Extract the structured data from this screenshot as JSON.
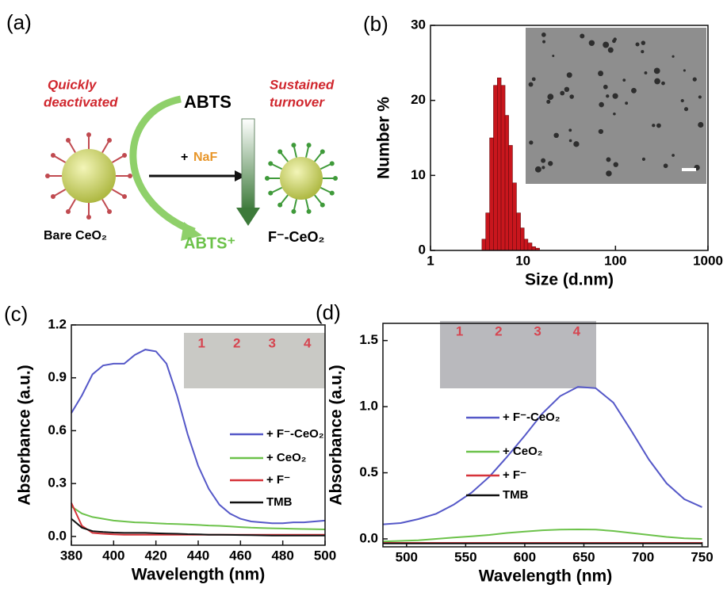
{
  "panel_a": {
    "panel_label": "(a)",
    "left_note": [
      "Quickly",
      "deactivated"
    ],
    "right_note": [
      "Sustained",
      "turnover"
    ],
    "substrate": "ABTS",
    "product": "ABTS⁺",
    "plus": "+",
    "reagent": "NaF",
    "left_particle": "Bare CeO₂",
    "right_particle": "F⁻-CeO₂"
  },
  "chart_data": [
    {
      "type": "histogram",
      "panel_label": "(b)",
      "xlabel": "Size (d.nm)",
      "ylabel": "Number %",
      "log_x": true,
      "bins": [
        3.6,
        3.96,
        4.36,
        4.8,
        5.28,
        5.8,
        6.4,
        7.0,
        7.7,
        8.5,
        9.4,
        10.3,
        11.3,
        12.5,
        13.7,
        15.1
      ],
      "values": [
        1.5,
        5,
        15,
        22,
        23,
        22,
        18,
        14,
        9,
        5,
        3,
        1.5,
        1,
        0.5,
        0.3
      ],
      "color": "#c8161d",
      "xlim": [
        1,
        1000
      ],
      "xticks": [
        1,
        10,
        100,
        1000
      ],
      "ylim": [
        0,
        30
      ],
      "yticks": [
        0,
        10,
        20,
        30
      ]
    },
    {
      "type": "line",
      "panel_label": "(c)",
      "xlabel": "Wavelength (nm)",
      "ylabel": "Absorbance (a.u.)",
      "x": [
        380,
        385,
        390,
        395,
        400,
        405,
        410,
        415,
        420,
        425,
        430,
        435,
        440,
        445,
        450,
        455,
        460,
        465,
        470,
        475,
        480,
        485,
        490,
        495,
        500
      ],
      "series": [
        {
          "name": "+ F⁻-CeO₂",
          "color": "#5558c8",
          "values": [
            0.7,
            0.8,
            0.92,
            0.97,
            0.98,
            0.98,
            1.03,
            1.06,
            1.05,
            0.98,
            0.8,
            0.58,
            0.4,
            0.27,
            0.18,
            0.13,
            0.1,
            0.085,
            0.08,
            0.075,
            0.075,
            0.08,
            0.08,
            0.085,
            0.09
          ]
        },
        {
          "name": "+ CeO₂",
          "color": "#6cc24a",
          "values": [
            0.17,
            0.13,
            0.11,
            0.1,
            0.09,
            0.085,
            0.08,
            0.078,
            0.075,
            0.072,
            0.07,
            0.068,
            0.065,
            0.062,
            0.06,
            0.057,
            0.053,
            0.05,
            0.048,
            0.046,
            0.045,
            0.043,
            0.042,
            0.041,
            0.04
          ]
        },
        {
          "name": "+ F⁻",
          "color": "#d6333a",
          "values": [
            0.19,
            0.06,
            0.02,
            0.015,
            0.012,
            0.01,
            0.01,
            0.01,
            0.01,
            0.01,
            0.01,
            0.01,
            0.01,
            0.01,
            0.01,
            0.01,
            0.01,
            0.01,
            0.01,
            0.01,
            0.01,
            0.01,
            0.01,
            0.01,
            0.01
          ]
        },
        {
          "name": "TMB",
          "color": "#111111",
          "values": [
            0.1,
            0.05,
            0.03,
            0.025,
            0.022,
            0.02,
            0.02,
            0.02,
            0.018,
            0.016,
            0.015,
            0.013,
            0.012,
            0.01,
            0.01,
            0.009,
            0.008,
            0.007,
            0.006,
            0.005,
            0.005,
            0.005,
            0.005,
            0.005,
            0.005
          ]
        }
      ],
      "xlim": [
        380,
        500
      ],
      "xticks": [
        380,
        400,
        420,
        440,
        460,
        480,
        500
      ],
      "ylim": [
        -0.05,
        1.2
      ],
      "yticks": [
        {
          "value": 0,
          "label": "0.0"
        },
        0.3,
        0.6,
        0.9,
        1.2
      ],
      "inset_labels": [
        "1",
        "2",
        "3",
        "4"
      ]
    },
    {
      "type": "line",
      "panel_label": "(d)",
      "xlabel": "Wavelength (nm)",
      "ylabel": "Absorbance (a.u.)",
      "x": [
        480,
        495,
        510,
        525,
        540,
        555,
        570,
        585,
        600,
        615,
        630,
        645,
        660,
        675,
        690,
        705,
        720,
        735,
        750
      ],
      "series": [
        {
          "name": "+ F⁻-CeO₂",
          "color": "#5558c8",
          "values": [
            0.11,
            0.12,
            0.15,
            0.19,
            0.26,
            0.35,
            0.47,
            0.62,
            0.78,
            0.95,
            1.08,
            1.15,
            1.14,
            1.03,
            0.82,
            0.6,
            0.42,
            0.3,
            0.24
          ]
        },
        {
          "name": "+ CeO₂",
          "color": "#6cc24a",
          "values": [
            -0.02,
            -0.015,
            -0.01,
            0,
            0.01,
            0.02,
            0.03,
            0.045,
            0.055,
            0.065,
            0.07,
            0.072,
            0.07,
            0.06,
            0.045,
            0.03,
            0.015,
            0.005,
            0
          ]
        },
        {
          "name": "+ F⁻",
          "color": "#d6333a",
          "values": [
            -0.03,
            -0.03,
            -0.03,
            -0.03,
            -0.03,
            -0.03,
            -0.03,
            -0.03,
            -0.03,
            -0.03,
            -0.03,
            -0.03,
            -0.03,
            -0.03,
            -0.03,
            -0.03,
            -0.03,
            -0.03,
            -0.03
          ]
        },
        {
          "name": "TMB",
          "color": "#111111",
          "values": [
            -0.035,
            -0.035,
            -0.035,
            -0.035,
            -0.035,
            -0.035,
            -0.035,
            -0.035,
            -0.035,
            -0.035,
            -0.035,
            -0.035,
            -0.035,
            -0.035,
            -0.035,
            -0.035,
            -0.035,
            -0.035,
            -0.035
          ]
        }
      ],
      "xlim": [
        480,
        755
      ],
      "xticks": [
        500,
        550,
        600,
        650,
        700,
        750
      ],
      "ylim": [
        -0.06,
        1.63
      ],
      "yticks": [
        {
          "value": 0,
          "label": "0.0"
        },
        0.5,
        {
          "value": 1,
          "label": "1.0"
        },
        1.5
      ],
      "inset_labels": [
        "1",
        "2",
        "3",
        "4"
      ]
    }
  ]
}
